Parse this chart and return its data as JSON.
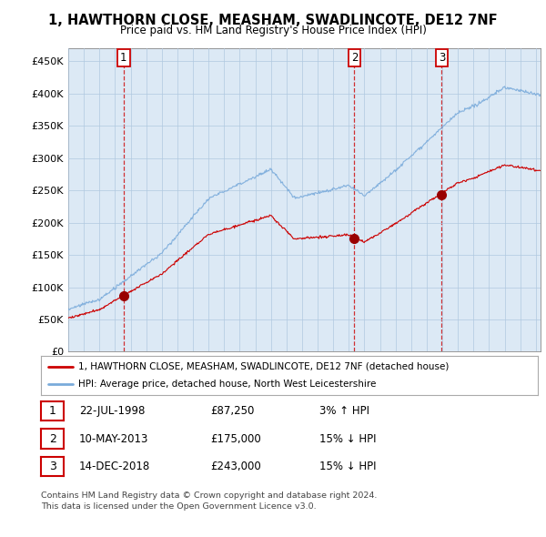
{
  "title": "1, HAWTHORN CLOSE, MEASHAM, SWADLINCOTE, DE12 7NF",
  "subtitle": "Price paid vs. HM Land Registry's House Price Index (HPI)",
  "ylabel_ticks": [
    "£0",
    "£50K",
    "£100K",
    "£150K",
    "£200K",
    "£250K",
    "£300K",
    "£350K",
    "£400K",
    "£450K"
  ],
  "ytick_values": [
    0,
    50000,
    100000,
    150000,
    200000,
    250000,
    300000,
    350000,
    400000,
    450000
  ],
  "ylim": [
    0,
    470000
  ],
  "xlim_start": 1995.0,
  "xlim_end": 2025.3,
  "sale_dates_num": [
    1998.55,
    2013.36,
    2018.96
  ],
  "sale_prices": [
    87250,
    175000,
    243000
  ],
  "sale_labels": [
    "1",
    "2",
    "3"
  ],
  "legend_line1": "1, HAWTHORN CLOSE, MEASHAM, SWADLINCOTE, DE12 7NF (detached house)",
  "legend_line2": "HPI: Average price, detached house, North West Leicestershire",
  "table_data": [
    [
      "1",
      "22-JUL-1998",
      "£87,250",
      "3% ↑ HPI"
    ],
    [
      "2",
      "10-MAY-2013",
      "£175,000",
      "15% ↓ HPI"
    ],
    [
      "3",
      "14-DEC-2018",
      "£243,000",
      "15% ↓ HPI"
    ]
  ],
  "footer": "Contains HM Land Registry data © Crown copyright and database right 2024.\nThis data is licensed under the Open Government Licence v3.0.",
  "hpi_color": "#7aabdb",
  "price_color": "#cc0000",
  "sale_marker_color": "#990000",
  "background_color": "#ffffff",
  "chart_bg_color": "#dce9f5",
  "grid_color": "#b0c8e0",
  "vline_color": "#cc0000"
}
